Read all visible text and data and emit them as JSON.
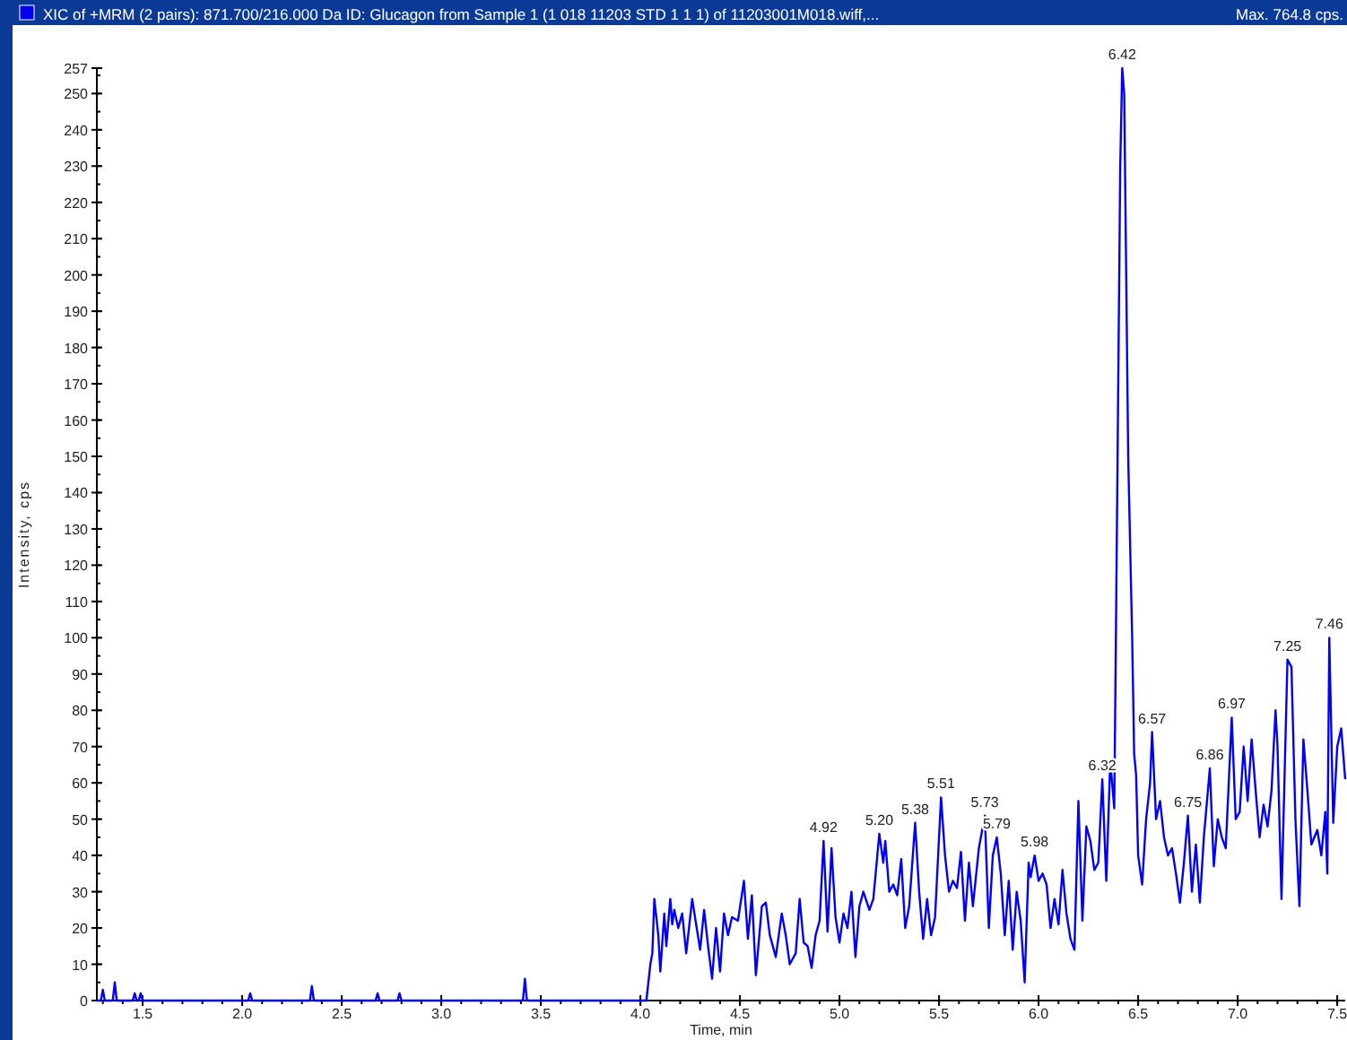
{
  "chart_data": {
    "type": "line",
    "title": "XIC of +MRM (2 pairs): 871.700/216.000 Da ID: Glucagon from Sample 1 (1 018 11203 STD 1 1 1) of 11203001M018.wiff,...",
    "subtitle": "Max. 764.8 cps.",
    "xlabel": "Time, min",
    "ylabel": "Intensity, cps",
    "xlim": [
      1.27,
      7.54
    ],
    "ylim": [
      0,
      257
    ],
    "xticks": [
      1.5,
      {
        "value": 2,
        "label": "2.0"
      },
      2.5,
      {
        "value": 3,
        "label": "3.0"
      },
      3.5,
      {
        "value": 4,
        "label": "4.0"
      },
      4.5,
      {
        "value": 5,
        "label": "5.0"
      },
      5.5,
      {
        "value": 6,
        "label": "6.0"
      },
      6.5,
      {
        "value": 7,
        "label": "7.0"
      },
      7.5
    ],
    "yticks": [
      0,
      10,
      20,
      30,
      40,
      50,
      60,
      70,
      80,
      90,
      100,
      110,
      120,
      130,
      140,
      150,
      160,
      170,
      180,
      190,
      200,
      210,
      220,
      230,
      240,
      250,
      257
    ],
    "grid": false,
    "marker": "none",
    "line_style": "solid",
    "annotations": [
      {
        "text": "4.92",
        "x": 4.92,
        "y": 44
      },
      {
        "text": "5.20",
        "x": 5.2,
        "y": 46
      },
      {
        "text": "5.38",
        "x": 5.38,
        "y": 49
      },
      {
        "text": "5.51",
        "x": 5.51,
        "y": 56
      },
      {
        "text": "5.73",
        "x": 5.73,
        "y": 51
      },
      {
        "text": "5.79",
        "x": 5.79,
        "y": 45
      },
      {
        "text": "5.98",
        "x": 5.98,
        "y": 40
      },
      {
        "text": "6.32",
        "x": 6.32,
        "y": 61
      },
      {
        "text": "6.42",
        "x": 6.42,
        "y": 257
      },
      {
        "text": "6.57",
        "x": 6.57,
        "y": 74
      },
      {
        "text": "6.75",
        "x": 6.75,
        "y": 51
      },
      {
        "text": "6.86",
        "x": 6.86,
        "y": 64
      },
      {
        "text": "6.97",
        "x": 6.97,
        "y": 78
      },
      {
        "text": "7.25",
        "x": 7.25,
        "y": 94
      },
      {
        "text": "7.46",
        "x": 7.46,
        "y": 100
      }
    ],
    "series": [
      {
        "color": "#0000ff",
        "x": [
          1.27,
          1.29,
          1.3,
          1.31,
          1.35,
          1.36,
          1.37,
          1.45,
          1.46,
          1.47,
          1.48,
          1.49,
          1.5,
          2.03,
          2.04,
          2.05,
          2.34,
          2.35,
          2.36,
          2.67,
          2.68,
          2.69,
          2.78,
          2.79,
          2.8,
          3.41,
          3.42,
          3.43,
          4.03,
          4.05,
          4.06,
          4.07,
          4.09,
          4.1,
          4.12,
          4.13,
          4.15,
          4.16,
          4.17,
          4.19,
          4.21,
          4.23,
          4.26,
          4.28,
          4.3,
          4.32,
          4.34,
          4.36,
          4.38,
          4.4,
          4.42,
          4.44,
          4.46,
          4.49,
          4.52,
          4.54,
          4.56,
          4.58,
          4.61,
          4.63,
          4.65,
          4.68,
          4.71,
          4.73,
          4.75,
          4.78,
          4.8,
          4.82,
          4.84,
          4.86,
          4.88,
          4.9,
          4.92,
          4.94,
          4.96,
          4.98,
          5.0,
          5.02,
          5.04,
          5.06,
          5.08,
          5.1,
          5.12,
          5.15,
          5.17,
          5.2,
          5.22,
          5.23,
          5.25,
          5.27,
          5.29,
          5.31,
          5.33,
          5.35,
          5.38,
          5.4,
          5.42,
          5.44,
          5.46,
          5.48,
          5.51,
          5.53,
          5.55,
          5.57,
          5.59,
          5.61,
          5.63,
          5.65,
          5.67,
          5.7,
          5.73,
          5.75,
          5.77,
          5.79,
          5.81,
          5.83,
          5.85,
          5.87,
          5.89,
          5.91,
          5.93,
          5.95,
          5.96,
          5.98,
          6.0,
          6.02,
          6.04,
          6.06,
          6.08,
          6.1,
          6.12,
          6.14,
          6.16,
          6.18,
          6.2,
          6.22,
          6.24,
          6.26,
          6.28,
          6.3,
          6.32,
          6.34,
          6.36,
          6.38,
          6.39,
          6.4,
          6.41,
          6.42,
          6.43,
          6.44,
          6.45,
          6.47,
          6.48,
          6.49,
          6.5,
          6.52,
          6.54,
          6.56,
          6.57,
          6.59,
          6.61,
          6.63,
          6.65,
          6.67,
          6.69,
          6.71,
          6.73,
          6.75,
          6.77,
          6.79,
          6.81,
          6.83,
          6.86,
          6.88,
          6.9,
          6.92,
          6.94,
          6.97,
          6.99,
          7.01,
          7.03,
          7.05,
          7.07,
          7.09,
          7.11,
          7.13,
          7.15,
          7.17,
          7.19,
          7.2,
          7.22,
          7.25,
          7.27,
          7.29,
          7.31,
          7.33,
          7.35,
          7.37,
          7.4,
          7.42,
          7.44,
          7.45,
          7.46,
          7.48,
          7.5,
          7.52,
          7.54
        ],
        "values": [
          0,
          0,
          3,
          0,
          0,
          5,
          0,
          0,
          2,
          0,
          0,
          2,
          0,
          0,
          2,
          0,
          0,
          4,
          0,
          0,
          2,
          0,
          0,
          2,
          0,
          0,
          6,
          0,
          0,
          10,
          13,
          28,
          18,
          8,
          24,
          15,
          28,
          21,
          25,
          20,
          24,
          13,
          28,
          21,
          14,
          25,
          15,
          6,
          20,
          8,
          24,
          18,
          23,
          22,
          33,
          17,
          29,
          7,
          26,
          27,
          18,
          12,
          24,
          18,
          10,
          13,
          28,
          16,
          15,
          9,
          18,
          22,
          44,
          19,
          42,
          23,
          16,
          24,
          20,
          30,
          12,
          26,
          30,
          25,
          28,
          46,
          38,
          44,
          30,
          32,
          29,
          39,
          20,
          26,
          49,
          30,
          17,
          28,
          18,
          23,
          56,
          40,
          30,
          33,
          31,
          41,
          22,
          38,
          26,
          42,
          51,
          20,
          40,
          45,
          35,
          18,
          33,
          14,
          30,
          22,
          5,
          38,
          34,
          40,
          33,
          35,
          32,
          20,
          28,
          21,
          36,
          24,
          17,
          14,
          55,
          22,
          48,
          44,
          36,
          38,
          61,
          33,
          66,
          53,
          110,
          170,
          230,
          257,
          250,
          200,
          150,
          100,
          68,
          62,
          40,
          32,
          50,
          60,
          74,
          50,
          55,
          45,
          40,
          42,
          35,
          27,
          38,
          51,
          30,
          43,
          27,
          45,
          64,
          37,
          50,
          45,
          42,
          78,
          50,
          52,
          70,
          55,
          72,
          58,
          45,
          54,
          48,
          58,
          80,
          70,
          28,
          94,
          92,
          50,
          26,
          72,
          58,
          43,
          47,
          40,
          52,
          35,
          100,
          49,
          70,
          75,
          61
        ]
      }
    ]
  }
}
